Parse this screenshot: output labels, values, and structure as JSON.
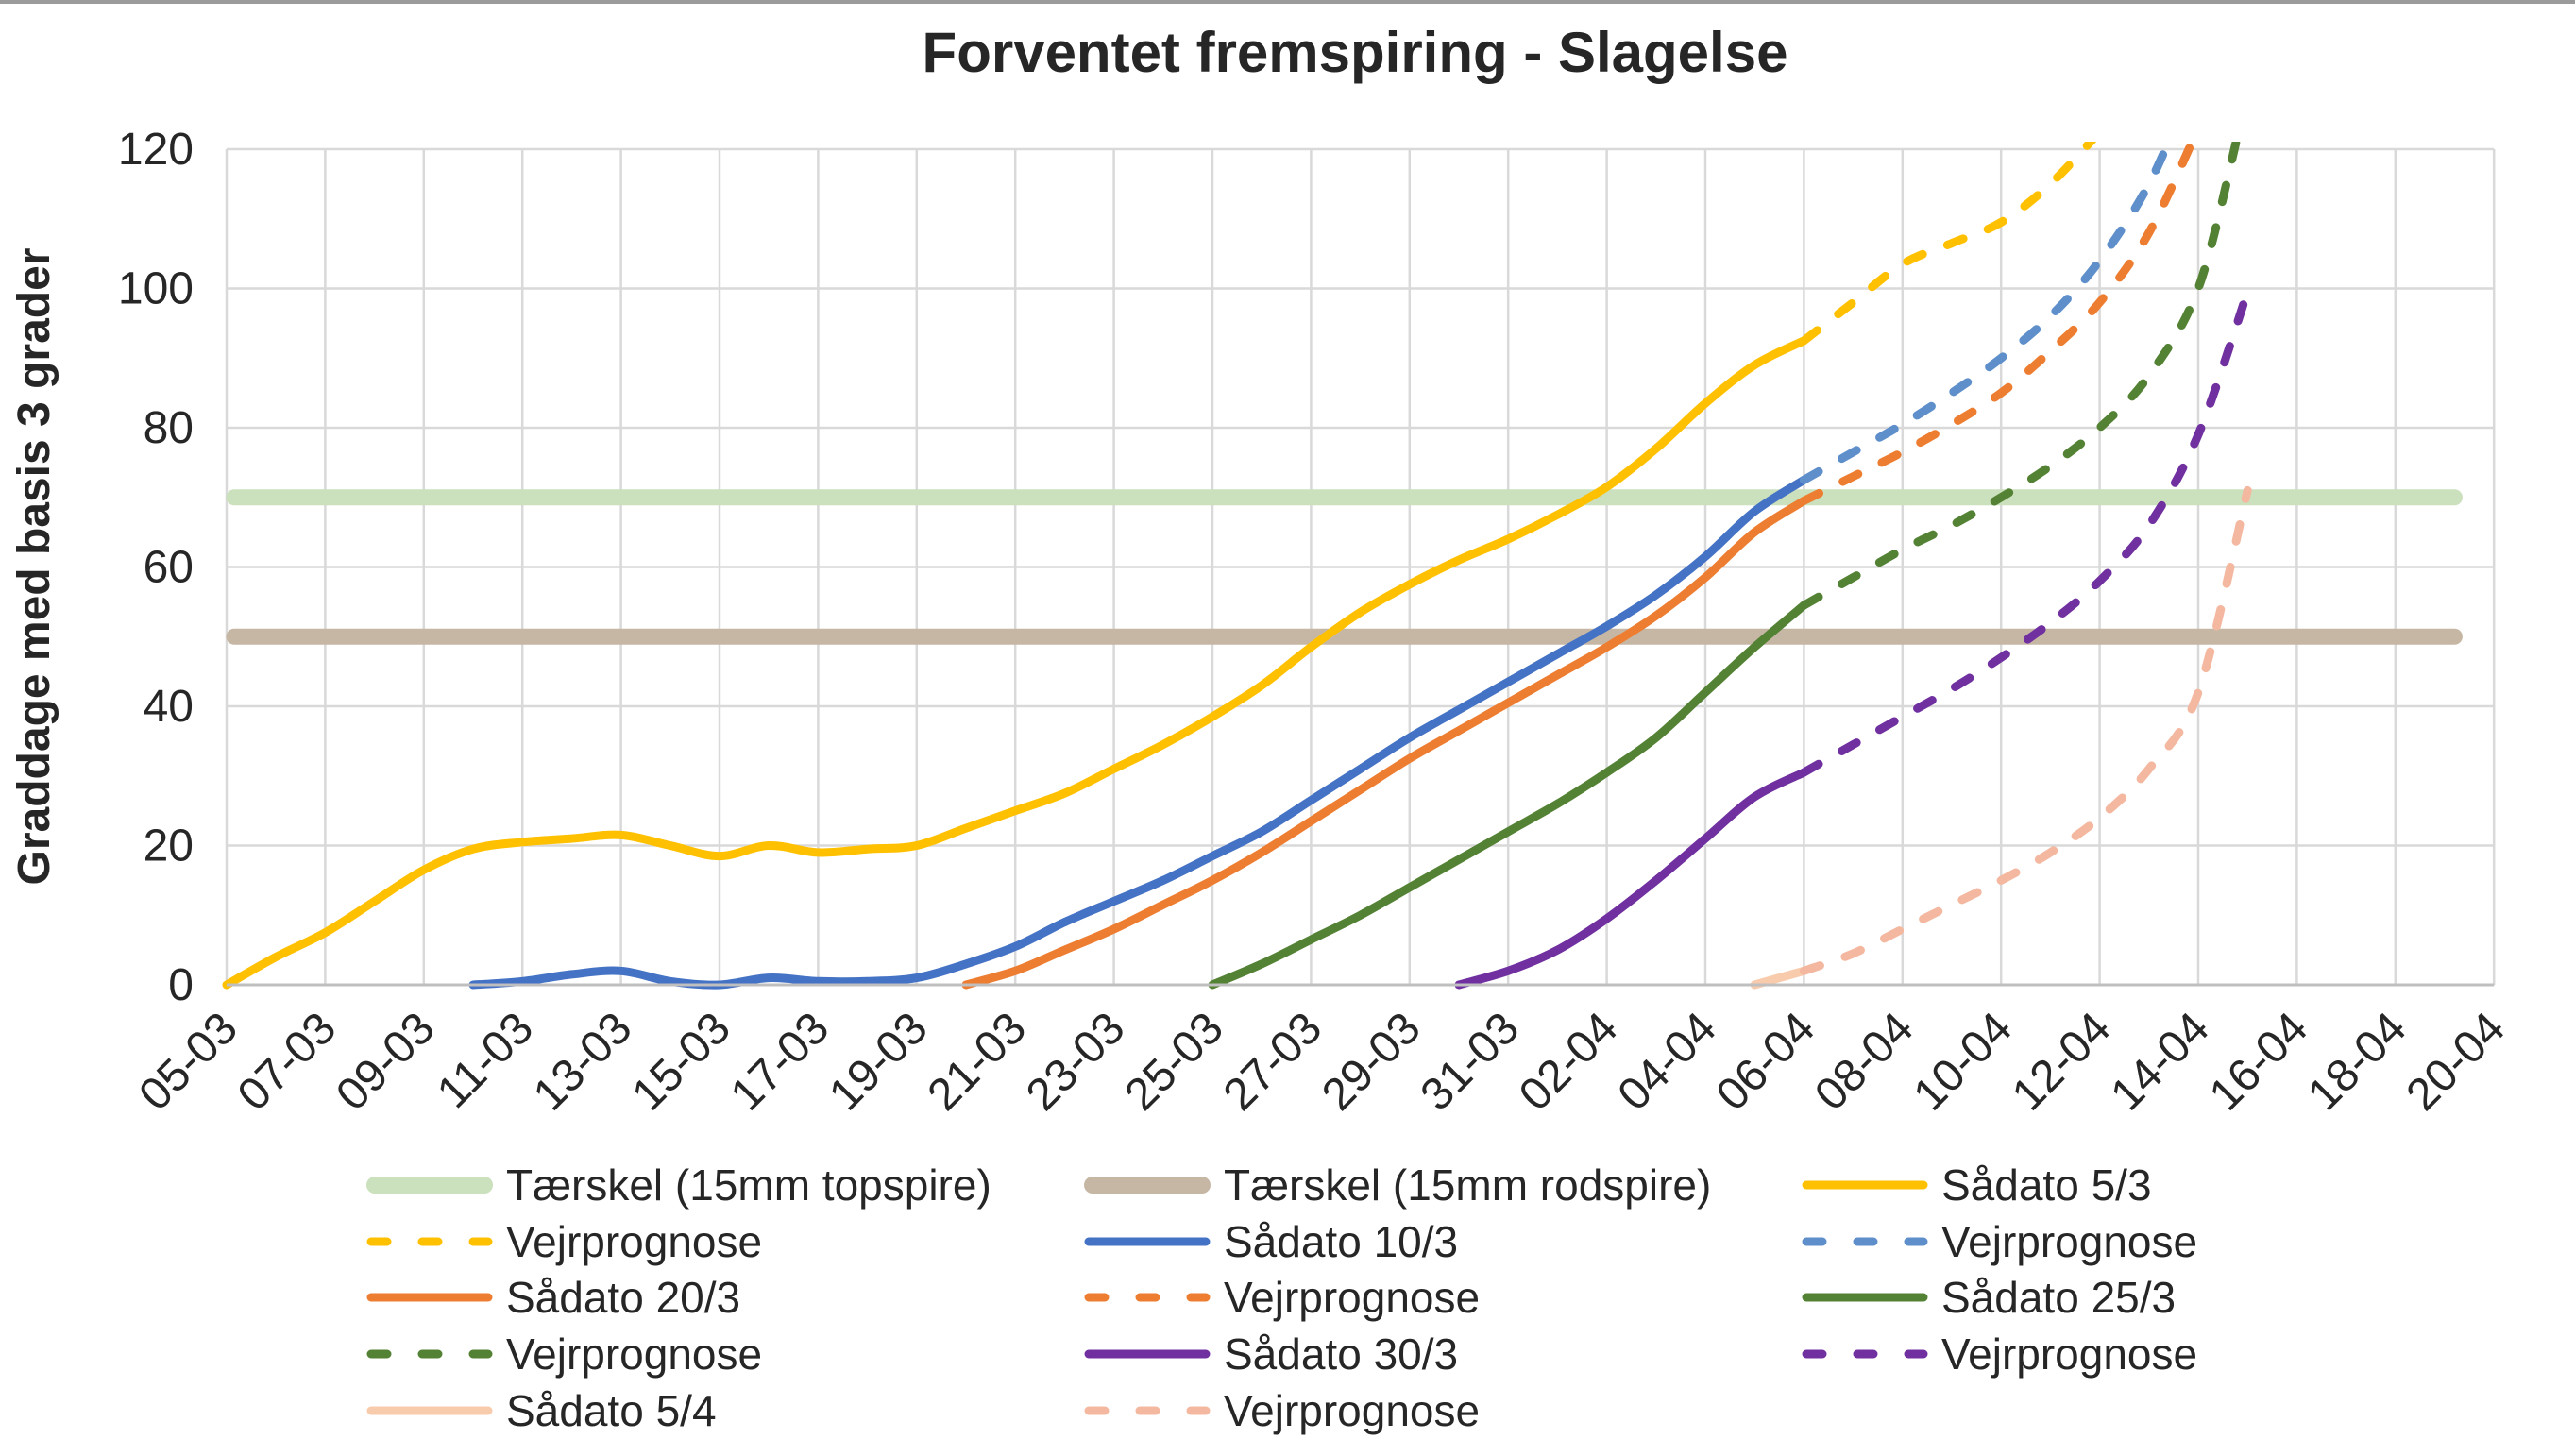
{
  "title": "Forventet fremspiring - Slagelse",
  "chart_data": {
    "type": "line",
    "title": "Forventet fremspiring - Slagelse",
    "ylabel": "Graddage med basis 3 grader",
    "xlabel": "",
    "ylim": [
      0,
      120
    ],
    "y_ticks": [
      0,
      20,
      40,
      60,
      80,
      100,
      120
    ],
    "x_tick_labels": [
      "05-03",
      "07-03",
      "09-03",
      "11-03",
      "13-03",
      "15-03",
      "17-03",
      "19-03",
      "21-03",
      "23-03",
      "25-03",
      "27-03",
      "29-03",
      "31-03",
      "02-04",
      "04-04",
      "06-04",
      "08-04",
      "10-04",
      "12-04",
      "14-04",
      "16-04",
      "18-04",
      "20-04"
    ],
    "x_unit": "days since 05-03 (ticks every 2 days)",
    "total_days": 46,
    "grid": true,
    "legend_position": "bottom",
    "colors": {
      "threshold_top": "#CBE0BC",
      "threshold_root": "#C6B7A5",
      "yellow": "#FFC000",
      "blue": "#4472C4",
      "blue_forecast": "#5E8FCB",
      "orange": "#ED7D31",
      "green": "#548235",
      "purple": "#7030A0",
      "peach": "#F8CBAD",
      "peach_forecast": "#F4B8A0",
      "gridline": "#D9D9D9",
      "axis": "#BFBFBF",
      "text": "#262626"
    },
    "bands": [
      {
        "label": "Tærskel (15mm topspire)",
        "value": 70,
        "color": "#CBE0BC",
        "from_day": 0,
        "to_day": 45.2
      },
      {
        "label": "Tærskel (15mm rodspire)",
        "value": 50,
        "color": "#C6B7A5",
        "from_day": 0,
        "to_day": 45.2
      }
    ],
    "series": [
      {
        "name": "Sådato 5/3",
        "color": "#FFC000",
        "dash": false,
        "points": [
          [
            0,
            0
          ],
          [
            1,
            4
          ],
          [
            2,
            7.5
          ],
          [
            3,
            12
          ],
          [
            4,
            16.5
          ],
          [
            5,
            19.5
          ],
          [
            6,
            20.5
          ],
          [
            7,
            21
          ],
          [
            8,
            21.5
          ],
          [
            9,
            20
          ],
          [
            10,
            18.5
          ],
          [
            11,
            20
          ],
          [
            12,
            19
          ],
          [
            13,
            19.5
          ],
          [
            14,
            20
          ],
          [
            15,
            22.5
          ],
          [
            16,
            25
          ],
          [
            17,
            27.5
          ],
          [
            18,
            31
          ],
          [
            19,
            34.5
          ],
          [
            20,
            38.5
          ],
          [
            21,
            43
          ],
          [
            22,
            48.5
          ],
          [
            23,
            53.5
          ],
          [
            24,
            57.5
          ],
          [
            25,
            61
          ],
          [
            26,
            64
          ],
          [
            27,
            67.5
          ],
          [
            28,
            71.5
          ],
          [
            29,
            77
          ],
          [
            30,
            83.5
          ],
          [
            31,
            89
          ],
          [
            32,
            92.5
          ]
        ]
      },
      {
        "name": "Vejrprognose",
        "color": "#FFC000",
        "dash": true,
        "points": [
          [
            32,
            92.5
          ],
          [
            33,
            98
          ],
          [
            34,
            103.5
          ],
          [
            35,
            106.5
          ],
          [
            36,
            109.5
          ],
          [
            37,
            115
          ],
          [
            38,
            122.5
          ]
        ]
      },
      {
        "name": "Sådato 10/3",
        "color": "#4472C4",
        "dash": false,
        "points": [
          [
            5,
            0
          ],
          [
            6,
            0.5
          ],
          [
            7,
            1.5
          ],
          [
            8,
            2
          ],
          [
            9,
            0.5
          ],
          [
            10,
            0
          ],
          [
            11,
            1
          ],
          [
            12,
            0.5
          ],
          [
            13,
            0.5
          ],
          [
            14,
            1
          ],
          [
            15,
            3
          ],
          [
            16,
            5.5
          ],
          [
            17,
            9
          ],
          [
            18,
            12
          ],
          [
            19,
            15
          ],
          [
            20,
            18.5
          ],
          [
            21,
            22
          ],
          [
            22,
            26.5
          ],
          [
            23,
            31
          ],
          [
            24,
            35.5
          ],
          [
            25,
            39.5
          ],
          [
            26,
            43.5
          ],
          [
            27,
            47.5
          ],
          [
            28,
            51.5
          ],
          [
            29,
            56
          ],
          [
            30,
            61.5
          ],
          [
            31,
            68
          ],
          [
            32,
            72.5
          ]
        ]
      },
      {
        "name": "Vejrprognose",
        "color": "#5E8FCB",
        "dash": true,
        "points": [
          [
            32,
            72.5
          ],
          [
            33,
            76.5
          ],
          [
            34,
            80.5
          ],
          [
            35,
            85
          ],
          [
            36,
            90
          ],
          [
            37,
            96
          ],
          [
            38,
            104
          ],
          [
            39,
            115
          ],
          [
            39.8,
            128
          ]
        ]
      },
      {
        "name": "Sådato 20/3",
        "color": "#ED7D31",
        "dash": false,
        "points": [
          [
            15,
            0
          ],
          [
            16,
            2
          ],
          [
            17,
            5
          ],
          [
            18,
            8
          ],
          [
            19,
            11.5
          ],
          [
            20,
            15
          ],
          [
            21,
            19
          ],
          [
            22,
            23.5
          ],
          [
            23,
            28
          ],
          [
            24,
            32.5
          ],
          [
            25,
            36.5
          ],
          [
            26,
            40.5
          ],
          [
            27,
            44.5
          ],
          [
            28,
            48.5
          ],
          [
            29,
            53
          ],
          [
            30,
            58.5
          ],
          [
            31,
            65
          ],
          [
            32,
            69.5
          ]
        ]
      },
      {
        "name": "Vejrprognose",
        "color": "#ED7D31",
        "dash": true,
        "points": [
          [
            32,
            69.5
          ],
          [
            33,
            73
          ],
          [
            34,
            76.5
          ],
          [
            35,
            80.5
          ],
          [
            36,
            85
          ],
          [
            37,
            91
          ],
          [
            38,
            98
          ],
          [
            39,
            108
          ],
          [
            40,
            123
          ]
        ]
      },
      {
        "name": "Sådato 25/3",
        "color": "#548235",
        "dash": false,
        "points": [
          [
            20,
            0
          ],
          [
            21,
            3
          ],
          [
            22,
            6.5
          ],
          [
            23,
            10
          ],
          [
            24,
            14
          ],
          [
            25,
            18
          ],
          [
            26,
            22
          ],
          [
            27,
            26
          ],
          [
            28,
            30.5
          ],
          [
            29,
            35.5
          ],
          [
            30,
            42
          ],
          [
            31,
            48.5
          ],
          [
            32,
            54.5
          ]
        ]
      },
      {
        "name": "Vejrprognose",
        "color": "#548235",
        "dash": true,
        "points": [
          [
            32,
            54.5
          ],
          [
            33,
            58.5
          ],
          [
            34,
            62.5
          ],
          [
            35,
            66
          ],
          [
            36,
            70
          ],
          [
            37,
            74.5
          ],
          [
            38,
            80
          ],
          [
            39,
            87.5
          ],
          [
            40,
            100
          ],
          [
            40.8,
            122
          ]
        ]
      },
      {
        "name": "Sådato 30/3",
        "color": "#7030A0",
        "dash": false,
        "points": [
          [
            25,
            0
          ],
          [
            26,
            2
          ],
          [
            27,
            5
          ],
          [
            28,
            9.5
          ],
          [
            29,
            15
          ],
          [
            30,
            21
          ],
          [
            31,
            27
          ],
          [
            32,
            30.5
          ]
        ]
      },
      {
        "name": "Vejrprognose",
        "color": "#7030A0",
        "dash": true,
        "points": [
          [
            32,
            30.5
          ],
          [
            33,
            34.5
          ],
          [
            34,
            38.5
          ],
          [
            35,
            42.5
          ],
          [
            36,
            47
          ],
          [
            37,
            52
          ],
          [
            38,
            58
          ],
          [
            39,
            66
          ],
          [
            40,
            79
          ],
          [
            41,
            99.5
          ]
        ]
      },
      {
        "name": "Sådato 5/4",
        "color": "#F8CBAD",
        "dash": false,
        "points": [
          [
            31,
            0
          ],
          [
            32,
            2
          ]
        ]
      },
      {
        "name": "Vejrprognose",
        "color": "#F4B8A0",
        "dash": true,
        "points": [
          [
            32,
            2
          ],
          [
            33,
            4.5
          ],
          [
            34,
            8
          ],
          [
            35,
            11.5
          ],
          [
            36,
            15
          ],
          [
            37,
            19
          ],
          [
            38,
            24
          ],
          [
            39,
            31
          ],
          [
            40,
            42
          ],
          [
            41,
            71
          ]
        ]
      }
    ]
  },
  "legend": {
    "items": [
      {
        "label": "Tærskel (15mm topspire)",
        "swatch": "band",
        "color": "#CBE0BC"
      },
      {
        "label": "Tærskel (15mm rodspire)",
        "swatch": "band",
        "color": "#C6B7A5"
      },
      {
        "label": "Sådato 5/3",
        "swatch": "solid",
        "color": "#FFC000"
      },
      {
        "label": "Vejrprognose",
        "swatch": "dashed",
        "color": "#FFC000"
      },
      {
        "label": "Sådato 10/3",
        "swatch": "solid",
        "color": "#4472C4"
      },
      {
        "label": "Vejrprognose",
        "swatch": "dashed",
        "color": "#5E8FCB"
      },
      {
        "label": "Sådato 20/3",
        "swatch": "solid",
        "color": "#ED7D31"
      },
      {
        "label": "Vejrprognose",
        "swatch": "dashed",
        "color": "#ED7D31"
      },
      {
        "label": "Sådato 25/3",
        "swatch": "solid",
        "color": "#548235"
      },
      {
        "label": "Vejrprognose",
        "swatch": "dashed",
        "color": "#548235"
      },
      {
        "label": "Sådato 30/3",
        "swatch": "solid",
        "color": "#7030A0"
      },
      {
        "label": "Vejrprognose",
        "swatch": "dashed",
        "color": "#7030A0"
      },
      {
        "label": "Sådato 5/4",
        "swatch": "solid",
        "color": "#F8CBAD"
      },
      {
        "label": "Vejrprognose",
        "swatch": "dashed",
        "color": "#F4B8A0"
      }
    ]
  }
}
